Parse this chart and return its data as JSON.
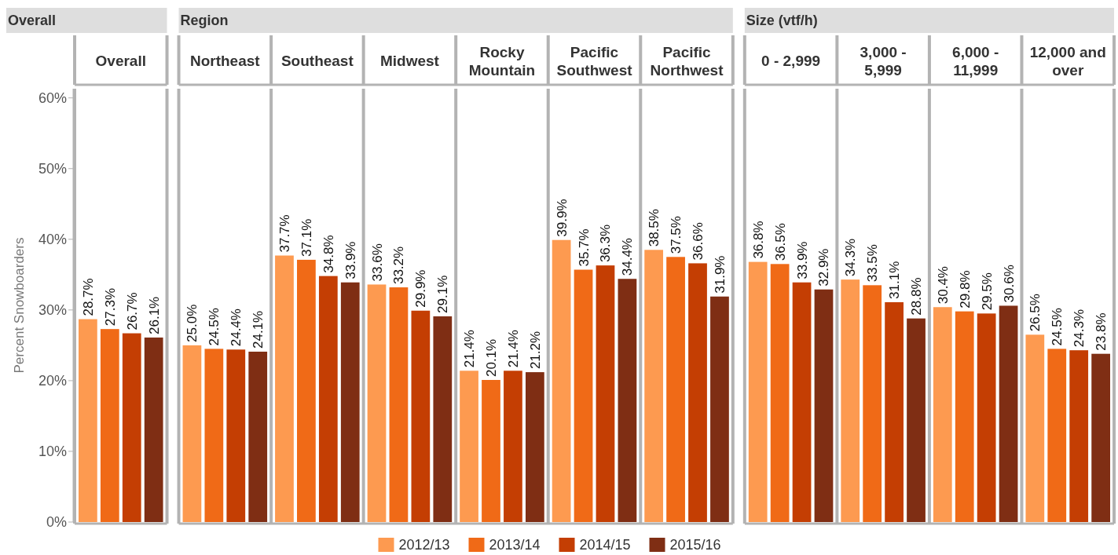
{
  "chart_data": [
    {
      "type": "bar",
      "title": "Overall",
      "categories": [
        "Overall"
      ],
      "ylabel": "Percent Snowboarders",
      "ylim": [
        0,
        61.3
      ],
      "yticks": [
        {
          "value": 0,
          "label": "0%"
        },
        {
          "value": 10,
          "label": "10%"
        },
        {
          "value": 20,
          "label": "20%"
        },
        {
          "value": 30,
          "label": "30%"
        },
        {
          "value": 40,
          "label": "40%"
        },
        {
          "value": 50,
          "label": "50%"
        },
        {
          "value": 60,
          "label": "60%"
        }
      ],
      "grid": false,
      "legend": "bottom",
      "series": [
        {
          "name": "2012/13",
          "color": "#fd9a50",
          "values": [
            28.7
          ],
          "value_labels": [
            "28.7%"
          ]
        },
        {
          "name": "2013/14",
          "color": "#f06a17",
          "values": [
            27.3
          ],
          "value_labels": [
            "27.3%"
          ]
        },
        {
          "name": "2014/15",
          "color": "#c43e03",
          "values": [
            26.7
          ],
          "value_labels": [
            "26.7%"
          ]
        },
        {
          "name": "2015/16",
          "color": "#7f2e14",
          "values": [
            26.1
          ],
          "value_labels": [
            "26.1%"
          ]
        }
      ]
    },
    {
      "type": "bar",
      "title": "Region",
      "categories": [
        "Northeast",
        "Southeast",
        "Midwest",
        "Rocky Mountain",
        "Pacific Southwest",
        "Pacific Northwest"
      ],
      "ylim": [
        0,
        61.3
      ],
      "tick_labels": "x",
      "grid": false,
      "series": [
        {
          "name": "2012/13",
          "color": "#fd9a50",
          "values": [
            25.0,
            37.7,
            33.6,
            21.4,
            39.9,
            38.5
          ],
          "value_labels": [
            "25.0%",
            "37.7%",
            "33.6%",
            "21.4%",
            "39.9%",
            "38.5%"
          ]
        },
        {
          "name": "2013/14",
          "color": "#f06a17",
          "values": [
            24.5,
            37.1,
            33.2,
            20.1,
            35.7,
            37.5
          ],
          "value_labels": [
            "24.5%",
            "37.1%",
            "33.2%",
            "20.1%",
            "35.7%",
            "37.5%"
          ]
        },
        {
          "name": "2014/15",
          "color": "#c43e03",
          "values": [
            24.4,
            34.8,
            29.9,
            21.4,
            36.3,
            36.6
          ],
          "value_labels": [
            "24.4%",
            "34.8%",
            "29.9%",
            "21.4%",
            "36.3%",
            "36.6%"
          ]
        },
        {
          "name": "2015/16",
          "color": "#7f2e14",
          "values": [
            24.1,
            33.9,
            29.1,
            21.2,
            34.4,
            31.9
          ],
          "value_labels": [
            "24.1%",
            "33.9%",
            "29.1%",
            "21.2%",
            "34.4%",
            "31.9%"
          ]
        }
      ]
    },
    {
      "type": "bar",
      "title": "Size (vtf/h)",
      "categories": [
        "0 - 2,999",
        "3,000 - 5,999",
        "6,000 - 11,999",
        "12,000 and over"
      ],
      "ylim": [
        0,
        61.3
      ],
      "tick_labels": "x",
      "grid": false,
      "series": [
        {
          "name": "2012/13",
          "color": "#fd9a50",
          "values": [
            36.8,
            34.3,
            30.4,
            26.5
          ],
          "value_labels": [
            "36.8%",
            "34.3%",
            "30.4%",
            "26.5%"
          ]
        },
        {
          "name": "2013/14",
          "color": "#f06a17",
          "values": [
            36.5,
            33.5,
            29.8,
            24.5
          ],
          "value_labels": [
            "36.5%",
            "33.5%",
            "29.8%",
            "24.5%"
          ]
        },
        {
          "name": "2014/15",
          "color": "#c43e03",
          "values": [
            33.9,
            31.1,
            29.5,
            24.3
          ],
          "value_labels": [
            "33.9%",
            "31.1%",
            "29.5%",
            "24.3%"
          ]
        },
        {
          "name": "2015/16",
          "color": "#7f2e14",
          "values": [
            32.9,
            28.8,
            30.6,
            23.8
          ],
          "value_labels": [
            "32.9%",
            "28.8%",
            "30.6%",
            "23.8%"
          ]
        }
      ]
    }
  ]
}
